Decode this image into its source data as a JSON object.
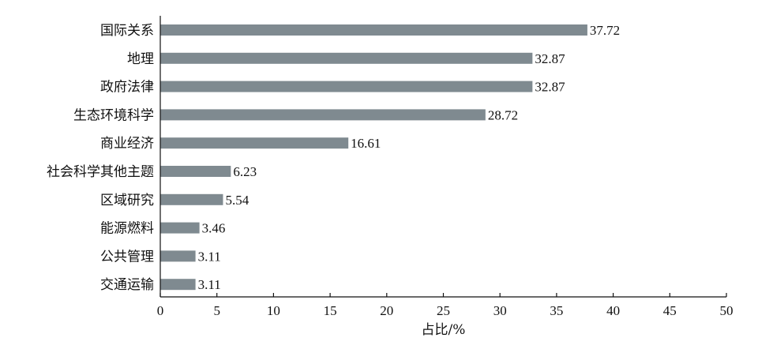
{
  "chart_data": {
    "type": "bar",
    "orientation": "horizontal",
    "categories": [
      "国际关系",
      "地理",
      "政府法律",
      "生态环境科学",
      "商业经济",
      "社会科学其他主题",
      "区域研究",
      "能源燃料",
      "公共管理",
      "交通运输"
    ],
    "values": [
      37.72,
      32.87,
      32.87,
      28.72,
      16.61,
      6.23,
      5.54,
      3.46,
      3.11,
      3.11
    ],
    "value_labels": [
      "37.72",
      "32.87",
      "32.87",
      "28.72",
      "16.61",
      "6.23",
      "5.54",
      "3.46",
      "3.11",
      "3.11"
    ],
    "xlabel": "占比/%",
    "xlim": [
      0,
      50
    ],
    "xticks": [
      0,
      5,
      10,
      15,
      20,
      25,
      30,
      35,
      40,
      45,
      50
    ],
    "grid": false,
    "bar_color": "#7f8a90"
  }
}
